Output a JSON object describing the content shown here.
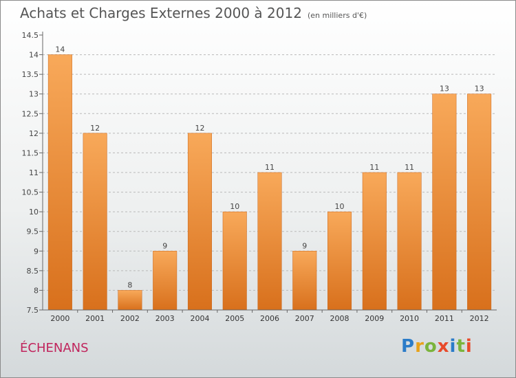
{
  "chart_data": {
    "type": "bar",
    "title": "Achats et Charges Externes 2000 à 2012",
    "subtitle": "(en milliers d'€)",
    "categories": [
      "2000",
      "2001",
      "2002",
      "2003",
      "2004",
      "2005",
      "2006",
      "2007",
      "2008",
      "2009",
      "2010",
      "2011",
      "2012"
    ],
    "values": [
      14,
      12,
      8,
      9,
      12,
      10,
      11,
      9,
      10,
      11,
      11,
      13,
      13
    ],
    "value_labels": [
      "14",
      "12",
      "8",
      "9",
      "12",
      "10",
      "11",
      "9",
      "10",
      "11",
      "11",
      "13",
      "13"
    ],
    "yticks": [
      "14.5",
      "14",
      "13.5",
      "13",
      "12.5",
      "12",
      "11.5",
      "11",
      "10.5",
      "10",
      "9.5",
      "9",
      "8.5",
      "8",
      "7.5"
    ],
    "ylim": [
      7.5,
      14.5
    ],
    "grid": "horizontal dashed",
    "bar_color": "#f0923a"
  },
  "commune": "ÉCHENANS",
  "brand": "Proxiti"
}
